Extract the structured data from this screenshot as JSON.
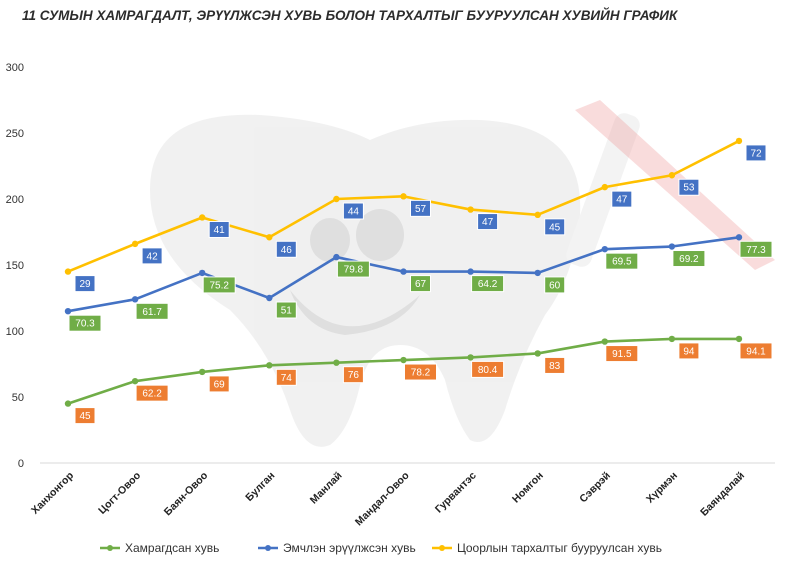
{
  "chart_data": {
    "type": "line",
    "title": "11 СУМЫН ХАМРАГДАЛТ, ЭРҮҮЛЖСЭН ХУВЬ БОЛОН ТАРХАЛТЫГ БУУРУУЛСАН ХУВИЙН ГРАФИК",
    "categories": [
      "Ханхонгор",
      "Цогт-Овоо",
      "Баян-Овоо",
      "Булган",
      "Манлай",
      "Мандал-Овоо",
      "Гурвантэс",
      "Номгон",
      "Сэврэй",
      "Хүрмэн",
      "Баяндалай"
    ],
    "ylim": [
      0,
      300
    ],
    "yticks": [
      0,
      50,
      100,
      150,
      200,
      250,
      300
    ],
    "grid": false,
    "legend_position": "bottom",
    "series": [
      {
        "name": "Хамрагдсан хувь",
        "color": "#70AD47",
        "label_color": "#ED7D31",
        "values": [
          45,
          62,
          69,
          74,
          76,
          78,
          80,
          83,
          92,
          94,
          94
        ],
        "labels": [
          "45",
          "62.2",
          "69",
          "74",
          "76",
          "78.2",
          "80.4",
          "83",
          "91.5",
          "94",
          "94.1"
        ]
      },
      {
        "name": "Эмчлэн эрүүлжсэн хувь",
        "color": "#4472C4",
        "label_color": "#70AD47",
        "values": [
          115,
          124,
          144,
          125,
          156,
          145,
          145,
          144,
          162,
          164,
          171
        ],
        "labels": [
          "70.3",
          "61.7",
          "75.2",
          "51",
          "79.8",
          "67",
          "64.2",
          "60",
          "69.5",
          "69.2",
          "77.3"
        ]
      },
      {
        "name": "Цоорлын тархалтыг бууруулсан хувь",
        "color": "#FFC000",
        "label_color": "#4472C4",
        "values": [
          145,
          166,
          186,
          171,
          200,
          202,
          192,
          188,
          209,
          218,
          244
        ],
        "labels": [
          "29",
          "42",
          "41",
          "46",
          "44",
          "57",
          "47",
          "45",
          "47",
          "53",
          "72"
        ]
      }
    ]
  }
}
